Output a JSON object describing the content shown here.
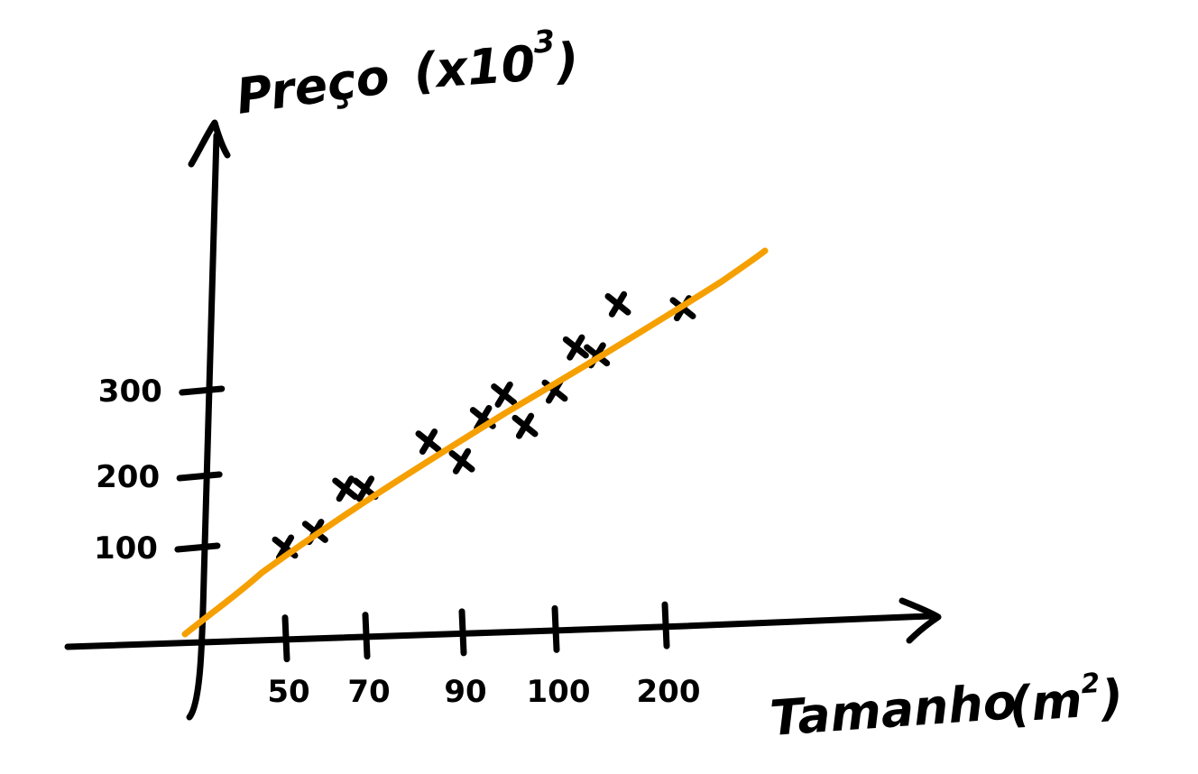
{
  "chart_data": {
    "type": "scatter",
    "ylabel_main": "Preço",
    "ylabel_unit_base": "(x10",
    "ylabel_unit_exp": "3",
    "ylabel_unit_close": ")",
    "xlabel_main": "Tamanho",
    "xlabel_unit_base": "(m",
    "xlabel_unit_exp": "2",
    "xlabel_unit_close": ")",
    "x_ticks": [
      "50",
      "70",
      "90",
      "100",
      "200"
    ],
    "y_ticks": [
      "100",
      "200",
      "300"
    ],
    "points": [
      {
        "x": "50",
        "y": 100
      },
      {
        "x": "50",
        "y": 120
      },
      {
        "x": "50",
        "y": 175
      },
      {
        "x": "70",
        "y": 175
      },
      {
        "x": "70",
        "y": 235
      },
      {
        "x": "90",
        "y": 210
      },
      {
        "x": "90",
        "y": 265
      },
      {
        "x": "90",
        "y": 295
      },
      {
        "x": "90",
        "y": 255
      },
      {
        "x": "100",
        "y": 300
      },
      {
        "x": "100",
        "y": 355
      },
      {
        "x": "100",
        "y": 345
      },
      {
        "x": "100",
        "y": 410
      },
      {
        "x": "200",
        "y": 405
      }
    ],
    "trend_color": "#F5A000",
    "marker_color": "#000000"
  }
}
